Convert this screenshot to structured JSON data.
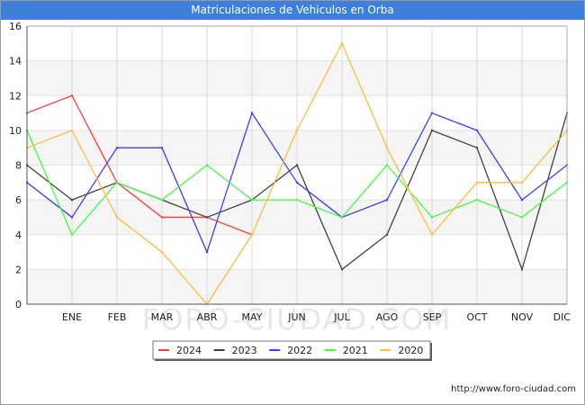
{
  "title": "Matriculaciones de Vehiculos en Orba",
  "source": "http://www.foro-ciudad.com",
  "watermark": "FORO-CIUDAD.COM",
  "chart_data": {
    "type": "line",
    "title": "Matriculaciones de Vehiculos en Orba",
    "categories": [
      "",
      "ENE",
      "FEB",
      "MAR",
      "ABR",
      "MAY",
      "JUN",
      "JUL",
      "AGO",
      "SEP",
      "OCT",
      "NOV",
      "DIC"
    ],
    "ylim": [
      0,
      16
    ],
    "yticks": [
      0,
      2,
      4,
      6,
      8,
      10,
      12,
      14,
      16
    ],
    "grid": true,
    "legend_position": "bottom-center",
    "series": [
      {
        "name": "2024",
        "color": "#ff3b3b",
        "values": [
          11,
          12,
          7,
          5,
          5,
          4,
          null,
          null,
          null,
          null,
          null,
          null,
          null
        ]
      },
      {
        "name": "2023",
        "color": "#404040",
        "values": [
          8,
          6,
          7,
          6,
          5,
          6,
          8,
          2,
          4,
          10,
          9,
          2,
          11
        ]
      },
      {
        "name": "2022",
        "color": "#3d3dff",
        "values": [
          7,
          5,
          9,
          9,
          3,
          11,
          7,
          5,
          6,
          11,
          10,
          6,
          8
        ]
      },
      {
        "name": "2021",
        "color": "#3dff3d",
        "values": [
          10,
          4,
          7,
          6,
          8,
          6,
          6,
          5,
          8,
          5,
          6,
          5,
          7
        ]
      },
      {
        "name": "2020",
        "color": "#ffbb3d",
        "values": [
          9,
          10,
          5,
          3,
          0,
          4,
          10,
          15,
          9,
          4,
          7,
          7,
          10
        ]
      }
    ]
  }
}
